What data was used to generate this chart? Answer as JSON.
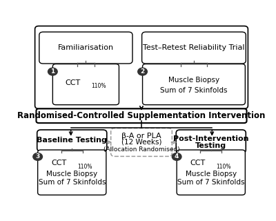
{
  "bg_color": "#ffffff",
  "dark_circle_color": "#333333",
  "dashed_box_color": "#999999",
  "line_color": "#555555",
  "arrow_color": "#111111",
  "box1_title": "Familiarisation",
  "box2_title": "Test–Retest Reliability Trial",
  "box_rcs": "Randomised-Controlled Supplementation Intervention",
  "box_baseline": "Baseline Testing",
  "box_beta_line1": "β-A or PLA",
  "box_beta_line2": "(12 Weeks)",
  "box_beta_line3": "(Allocation Randomised)",
  "box_post_line1": "Post-Intervention",
  "box_post_line2": "Testing",
  "sub1_cct": "CCT",
  "sub1_sub": "110%",
  "sub2_line1": "Muscle Biopsy",
  "sub2_line2": "Sum of 7 Skinfolds",
  "sub34_cct": "CCT",
  "sub34_sub": "110%",
  "sub34_line1": "Muscle Biopsy",
  "sub34_line2": "Sum of 7 Skinfolds",
  "circle_labels": [
    "1",
    "2",
    "3",
    "4"
  ]
}
